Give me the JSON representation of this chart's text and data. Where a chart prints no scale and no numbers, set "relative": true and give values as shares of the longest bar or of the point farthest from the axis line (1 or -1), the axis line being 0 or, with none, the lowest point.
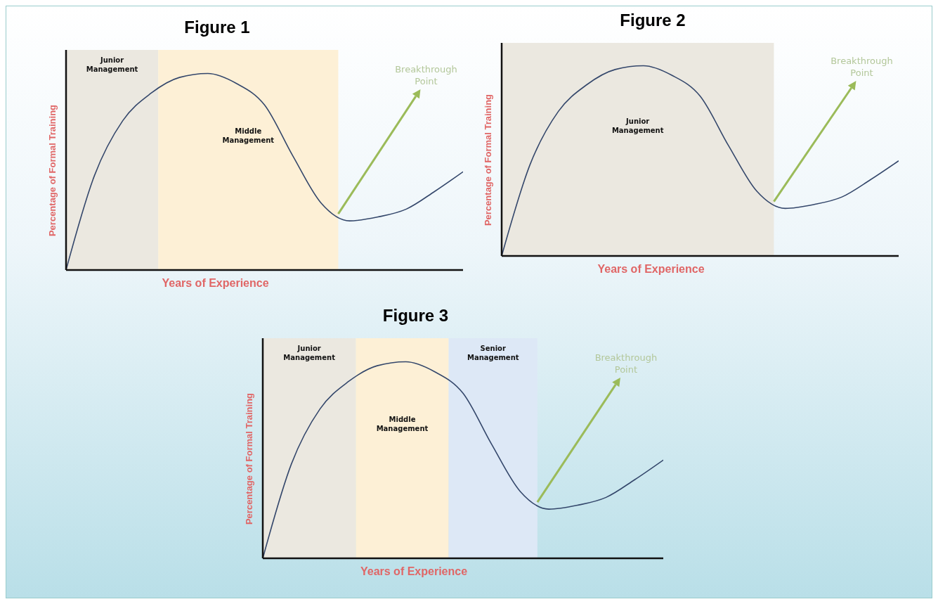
{
  "chart_data": [
    {
      "type": "line",
      "title": "Figure 1",
      "xlabel": "Years of Experience",
      "ylabel": "Percentage of Formal Training",
      "relative": true,
      "categories": [
        null,
        null,
        null,
        null,
        null,
        null,
        null,
        null,
        null,
        null,
        null,
        null,
        null,
        null,
        null
      ],
      "series": [
        {
          "color": "#34476b",
          "values": [
            0,
            0.48,
            0.76,
            0.9,
            0.98,
            1,
            0.95,
            0.84,
            0.58,
            0.34,
            0.25,
            0.27,
            0.31,
            0.4,
            0.5
          ]
        }
      ],
      "annotations": [
        "Junior Management",
        "Middle Management",
        "Breakthrough Point"
      ]
    },
    {
      "type": "line",
      "title": "Figure 2",
      "xlabel": "Years of Experience",
      "ylabel": "Percentage of Formal Training",
      "relative": true,
      "categories": [
        null,
        null,
        null,
        null,
        null,
        null,
        null,
        null,
        null,
        null,
        null,
        null,
        null,
        null,
        null
      ],
      "series": [
        {
          "color": "#34476b",
          "values": [
            0,
            0.48,
            0.76,
            0.9,
            0.98,
            1,
            0.95,
            0.84,
            0.58,
            0.34,
            0.25,
            0.27,
            0.31,
            0.4,
            0.5
          ]
        }
      ],
      "annotations": [
        "Junior Management",
        "Breakthrough Point"
      ]
    },
    {
      "type": "line",
      "title": "Figure 3",
      "xlabel": "Years of Experience",
      "ylabel": "Percentage of Formal Training",
      "relative": true,
      "categories": [
        null,
        null,
        null,
        null,
        null,
        null,
        null,
        null,
        null,
        null,
        null,
        null,
        null,
        null,
        null
      ],
      "series": [
        {
          "color": "#34476b",
          "values": [
            0,
            0.48,
            0.76,
            0.9,
            0.98,
            1,
            0.95,
            0.84,
            0.58,
            0.34,
            0.25,
            0.27,
            0.31,
            0.4,
            0.5
          ]
        }
      ],
      "annotations": [
        "Junior Management",
        "Middle Management",
        "Senior Management",
        "Breakthrough Point"
      ]
    }
  ]
}
